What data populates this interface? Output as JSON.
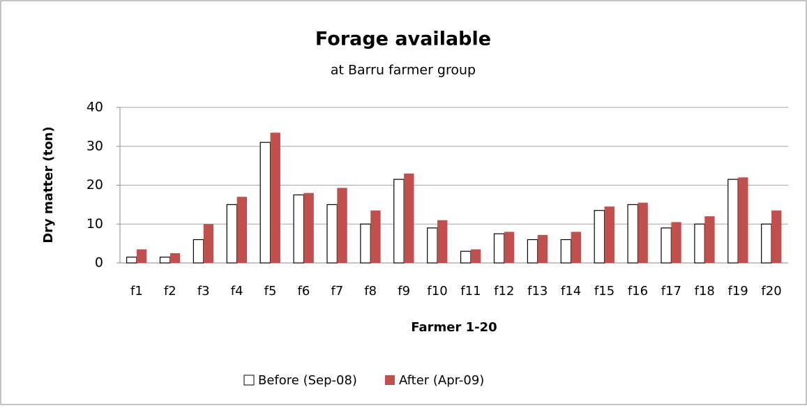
{
  "chart_data": {
    "type": "bar",
    "title": "Forage available",
    "subtitle": "at Barru farmer group",
    "x_label": "Farmer 1-20",
    "y_label": "Dry matter (ton)",
    "categories": [
      "f1",
      "f2",
      "f3",
      "f4",
      "f5",
      "f6",
      "f7",
      "f8",
      "f9",
      "f10",
      "f11",
      "f12",
      "f13",
      "f14",
      "f15",
      "f16",
      "f17",
      "f18",
      "f19",
      "f20"
    ],
    "series": [
      {
        "name": "Before (Sep-08)",
        "color": "#ffffff",
        "values": [
          1.5,
          1.5,
          6,
          15,
          31,
          17.5,
          15,
          10,
          21.5,
          9,
          3,
          7.5,
          6,
          6,
          13.5,
          15,
          9,
          10,
          21.5,
          10
        ]
      },
      {
        "name": "After (Apr-09)",
        "color": "#c0504d",
        "values": [
          3.5,
          2.5,
          10,
          17,
          33.5,
          18,
          19.3,
          13.5,
          23,
          11,
          3.5,
          8,
          7.2,
          8,
          14.5,
          15.5,
          10.5,
          12,
          22,
          13.5
        ]
      }
    ],
    "ylim": [
      0,
      40
    ],
    "yticks": [
      0,
      10,
      20,
      30,
      40
    ],
    "grid": true,
    "legend": "bottom"
  }
}
